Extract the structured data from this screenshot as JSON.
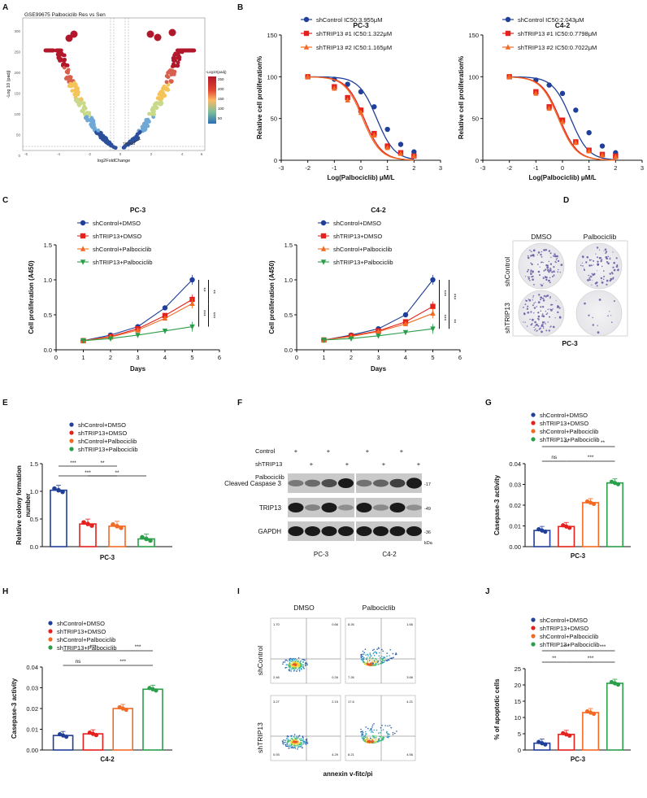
{
  "panel_letters": [
    "A",
    "B",
    "C",
    "D",
    "E",
    "F",
    "G",
    "H",
    "I",
    "J"
  ],
  "volcano": {
    "title": "GSE99675 Palbociclib Res vs Sen",
    "ylabel": "-Log 10 (padj)",
    "xlabel": "log2FoldChange",
    "legend_title": "-Log10(padj)",
    "legend_ticks": [
      "250",
      "200",
      "150",
      "100",
      "50"
    ],
    "yticks": [
      "300",
      "250",
      "200",
      "150",
      "100",
      "50",
      "0"
    ],
    "xticks": [
      "-5",
      "-4",
      "-2",
      "0",
      "2",
      "4",
      "6"
    ],
    "gene_label": "TRIP13"
  },
  "chart_data": [
    {
      "type": "line",
      "title": "PC-3",
      "xlabel": "Log(Palbociclib) μM/L",
      "ylabel": "Relative cell proliferation%",
      "xlim": [
        -3,
        3
      ],
      "ylim": [
        0,
        150
      ],
      "xticks": [
        "-3",
        "-2",
        "-1",
        "0",
        "1",
        "2",
        "3"
      ],
      "yticks": [
        "0",
        "50",
        "100",
        "150"
      ],
      "x": [
        -2,
        -1,
        -0.5,
        0,
        0.5,
        1,
        1.5,
        2
      ],
      "series": [
        {
          "name": "shControl IC50:3.955μM",
          "color": "#1f3f98",
          "marker": "circle",
          "values": [
            100,
            97,
            91,
            82,
            64,
            37,
            19,
            10
          ],
          "ic50": 0.597
        },
        {
          "name": "shTRIP13 #1 IC50:1.322μM",
          "color": "#e4211c",
          "marker": "square",
          "values": [
            100,
            88,
            75,
            60,
            32,
            17,
            9,
            5
          ],
          "ic50": 0.121
        },
        {
          "name": "shTRIP13 #2 IC50:1.165μM",
          "color": "#f26b25",
          "marker": "triangle",
          "values": [
            100,
            86,
            72,
            57,
            30,
            15,
            8,
            5
          ],
          "ic50": 0.066
        }
      ]
    },
    {
      "type": "line",
      "title": "C4-2",
      "xlabel": "Log(Palbociclib) μM/L",
      "ylabel": "Relative cell proliferation%",
      "xlim": [
        -3,
        3
      ],
      "ylim": [
        0,
        150
      ],
      "xticks": [
        "-3",
        "-2",
        "-1",
        "0",
        "1",
        "2",
        "3"
      ],
      "yticks": [
        "0",
        "50",
        "100",
        "150"
      ],
      "x": [
        -2,
        -1,
        -0.5,
        0,
        0.5,
        1,
        1.5,
        2
      ],
      "series": [
        {
          "name": "shControl IC50:2.043μM",
          "color": "#1f3f98",
          "marker": "circle",
          "values": [
            100,
            96,
            90,
            80,
            60,
            33,
            17,
            9
          ],
          "ic50": 0.31
        },
        {
          "name": "shTRIP13 #1 IC50:0.7798μM",
          "color": "#e4211c",
          "marker": "square",
          "values": [
            100,
            82,
            64,
            48,
            22,
            12,
            7,
            5
          ],
          "ic50": -0.108
        },
        {
          "name": "shTRIP13 #2 IC50:0.7022μM",
          "color": "#f26b25",
          "marker": "triangle",
          "values": [
            100,
            80,
            62,
            46,
            21,
            11,
            6,
            4
          ],
          "ic50": -0.153
        }
      ]
    },
    {
      "type": "line",
      "title": "PC-3",
      "xlabel": "Days",
      "ylabel": "Cell proliferation (A450)",
      "xlim": [
        0,
        6
      ],
      "ylim": [
        0,
        1.5
      ],
      "xticks": [
        "0",
        "1",
        "2",
        "3",
        "4",
        "5",
        "6"
      ],
      "yticks": [
        "0.0",
        "0.5",
        "1.0",
        "1.5"
      ],
      "x": [
        1,
        2,
        3,
        4,
        5
      ],
      "series": [
        {
          "name": "shControl+DMSO",
          "color": "#1f3f98",
          "marker": "circle",
          "values": [
            0.13,
            0.21,
            0.33,
            0.6,
            1.0
          ]
        },
        {
          "name": "shTRIP13+DMSO",
          "color": "#e4211c",
          "marker": "square",
          "values": [
            0.13,
            0.19,
            0.3,
            0.49,
            0.72
          ]
        },
        {
          "name": "shControl+Palbociclib",
          "color": "#f26b25",
          "marker": "triangle",
          "values": [
            0.13,
            0.18,
            0.28,
            0.45,
            0.66
          ]
        },
        {
          "name": "shTRIP13+Palbociclib",
          "color": "#2b9e4a",
          "marker": "triangle-down",
          "values": [
            0.13,
            0.16,
            0.21,
            0.27,
            0.33
          ]
        }
      ],
      "sig": [
        "**",
        "**",
        "***",
        "***"
      ]
    },
    {
      "type": "line",
      "title": "C4-2",
      "xlabel": "Days",
      "ylabel": "Cell proliferation (A450)",
      "xlim": [
        0,
        6
      ],
      "ylim": [
        0,
        1.5
      ],
      "xticks": [
        "0",
        "1",
        "2",
        "3",
        "4",
        "5",
        "6"
      ],
      "yticks": [
        "0.0",
        "0.5",
        "1.0",
        "1.5"
      ],
      "x": [
        1,
        2,
        3,
        4,
        5
      ],
      "series": [
        {
          "name": "shControl+DMSO",
          "color": "#1f3f98",
          "marker": "circle",
          "values": [
            0.14,
            0.21,
            0.3,
            0.5,
            1.0
          ]
        },
        {
          "name": "shTRIP13+DMSO",
          "color": "#e4211c",
          "marker": "square",
          "values": [
            0.14,
            0.2,
            0.27,
            0.4,
            0.62
          ]
        },
        {
          "name": "shControl+Palbociclib",
          "color": "#f26b25",
          "marker": "triangle",
          "values": [
            0.14,
            0.19,
            0.26,
            0.37,
            0.52
          ]
        },
        {
          "name": "shTRIP13+Palbociclib",
          "color": "#2b9e4a",
          "marker": "triangle-down",
          "values": [
            0.14,
            0.16,
            0.2,
            0.25,
            0.3
          ]
        }
      ],
      "sig": [
        "***",
        "***",
        "***",
        "**"
      ]
    },
    {
      "type": "bar",
      "title": "PC-3",
      "xlabel": "PC-3",
      "ylabel": "Relative colony formation number",
      "ylim": [
        0,
        1.5
      ],
      "yticks": [
        "0.0",
        "0.5",
        "1.0",
        "1.5"
      ],
      "categories": [
        "shControl+DMSO",
        "shTRIP13+DMSO",
        "shControl+Palbociclib",
        "shTRIP13+Palbociclib"
      ],
      "values": [
        1.02,
        0.41,
        0.37,
        0.14
      ],
      "colors": [
        "#1f3f98",
        "#e4211c",
        "#f26b25",
        "#2b9e4a"
      ],
      "sig": [
        "***",
        "**",
        "***",
        "**"
      ]
    },
    {
      "type": "bar",
      "xlabel": "PC-3",
      "ylabel": "Casepase-3 activity",
      "ylim": [
        0,
        0.04
      ],
      "yticks": [
        "0.00",
        "0.01",
        "0.02",
        "0.03",
        "0.04"
      ],
      "categories": [
        "shControl+DMSO",
        "shTRIP13+DMSO",
        "shControl+Palbociclib",
        "shTRIP13+Palbociclib"
      ],
      "values": [
        0.0078,
        0.0097,
        0.0212,
        0.0307
      ],
      "colors": [
        "#1f3f98",
        "#e4211c",
        "#f26b25",
        "#2b9e4a"
      ],
      "sig": [
        "**",
        "**",
        "ns",
        "***"
      ]
    },
    {
      "type": "bar",
      "xlabel": "C4-2",
      "ylabel": "Casepase-3 activity",
      "ylim": [
        0,
        0.04
      ],
      "yticks": [
        "0.00",
        "0.01",
        "0.02",
        "0.03",
        "0.04"
      ],
      "categories": [
        "shControl+DMSO",
        "shTRIP13+DMSO",
        "shControl+Palbociclib",
        "shTRIP13+Palbociclib"
      ],
      "values": [
        0.007,
        0.0078,
        0.02,
        0.0293
      ],
      "colors": [
        "#1f3f98",
        "#e4211c",
        "#f26b25",
        "#2b9e4a"
      ],
      "sig": [
        "***",
        "***",
        "ns",
        "***"
      ]
    },
    {
      "type": "bar",
      "xlabel": "PC-3",
      "ylabel": "% of apoptotic cells",
      "ylim": [
        0,
        25
      ],
      "yticks": [
        "0",
        "5",
        "10",
        "15",
        "20",
        "25"
      ],
      "categories": [
        "shControl+DMSO",
        "shTRIP13+DMSO",
        "shControl+Palbociclib",
        "shTRIP13+Palbociclib"
      ],
      "values": [
        2.1,
        4.8,
        11.5,
        20.5
      ],
      "colors": [
        "#1f3f98",
        "#e4211c",
        "#f26b25",
        "#2b9e4a"
      ],
      "sig": [
        "***",
        "***",
        "**",
        "***"
      ]
    }
  ],
  "colony": {
    "col_labels": [
      "DMSO",
      "Palbociclib"
    ],
    "row_labels": [
      "shControl",
      "shTRIP13"
    ],
    "caption": "PC-3"
  },
  "western": {
    "row_labels": [
      "Control",
      "shTRIP13",
      "Palbociclib"
    ],
    "bands": [
      "Cleaved Caspase 3",
      "TRIP13",
      "GAPDH"
    ],
    "kda": [
      "-17",
      "-49",
      "-36"
    ],
    "kda_unit": "kDa",
    "cells": [
      "PC-3",
      "C4-2"
    ],
    "plus": "+"
  },
  "flow": {
    "col_labels": [
      "DMSO",
      "Palbociclib"
    ],
    "row_labels": [
      "shControl",
      "shTRIP13"
    ],
    "xlabel": "annexin v-fitc/pi",
    "quads": [
      [
        "1.70",
        "0.66",
        "0.26",
        "2.46",
        "97.0"
      ],
      [
        "8.26",
        "1.66",
        "3.66",
        "7.26",
        "81.7"
      ],
      [
        "3.27",
        "2.15",
        "4.29",
        "0.93",
        "89.9"
      ],
      [
        "17.6",
        "4.21",
        "4.56",
        "8.21",
        "69.5"
      ]
    ]
  }
}
